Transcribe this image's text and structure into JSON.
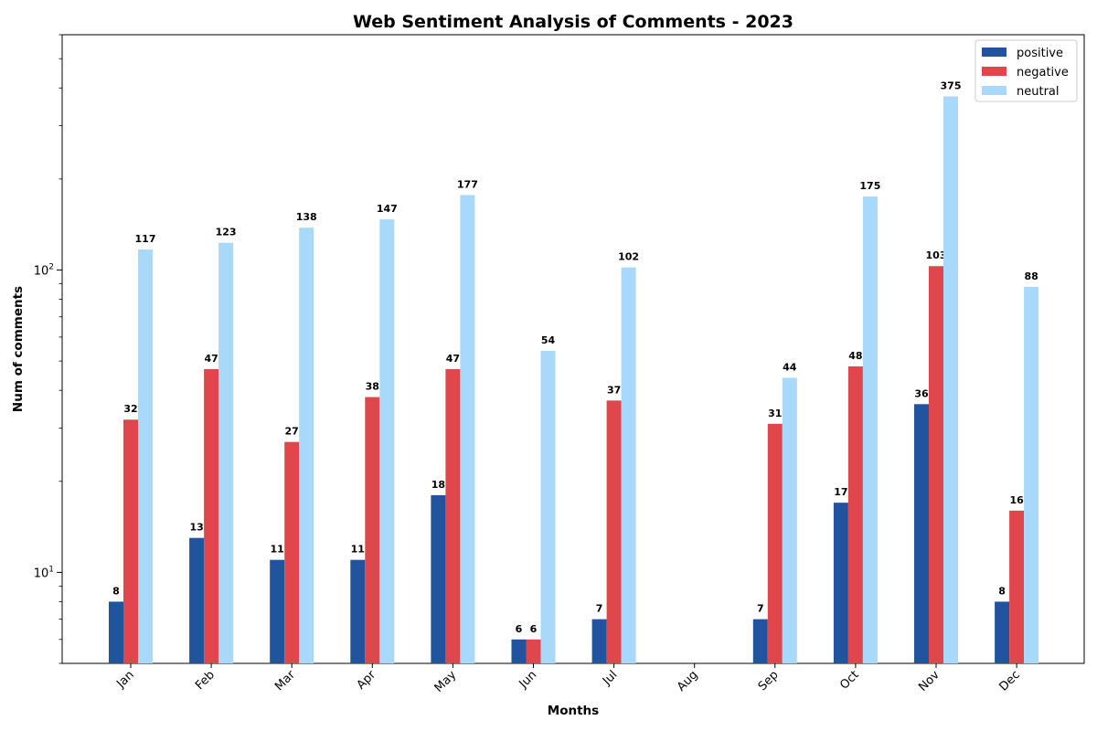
{
  "chart_data": {
    "type": "bar",
    "title": "Web Sentiment Analysis of Comments - 2023",
    "xlabel": "Months",
    "ylabel": "Num of comments",
    "yscale": "log",
    "ylim": [
      5,
      600
    ],
    "y_ticks": [
      {
        "value": 10,
        "base": "10",
        "exp": "1"
      },
      {
        "value": 100,
        "base": "10",
        "exp": "2"
      }
    ],
    "categories": [
      "Jan",
      "Feb",
      "Mar",
      "Apr",
      "May",
      "Jun",
      "Jul",
      "Aug",
      "Sep",
      "Oct",
      "Nov",
      "Dec"
    ],
    "series": [
      {
        "name": "positive",
        "color": "#22539f",
        "values": [
          8,
          13,
          11,
          11,
          18,
          6,
          7,
          0,
          7,
          17,
          36,
          8
        ]
      },
      {
        "name": "negative",
        "color": "#e0474c",
        "values": [
          32,
          47,
          27,
          38,
          47,
          6,
          37,
          0,
          31,
          48,
          103,
          16
        ]
      },
      {
        "name": "neutral",
        "color": "#a8d8fa",
        "values": [
          117,
          123,
          138,
          147,
          177,
          54,
          102,
          0,
          44,
          175,
          375,
          88
        ]
      }
    ],
    "legend_position": "top-right",
    "grid": false
  }
}
